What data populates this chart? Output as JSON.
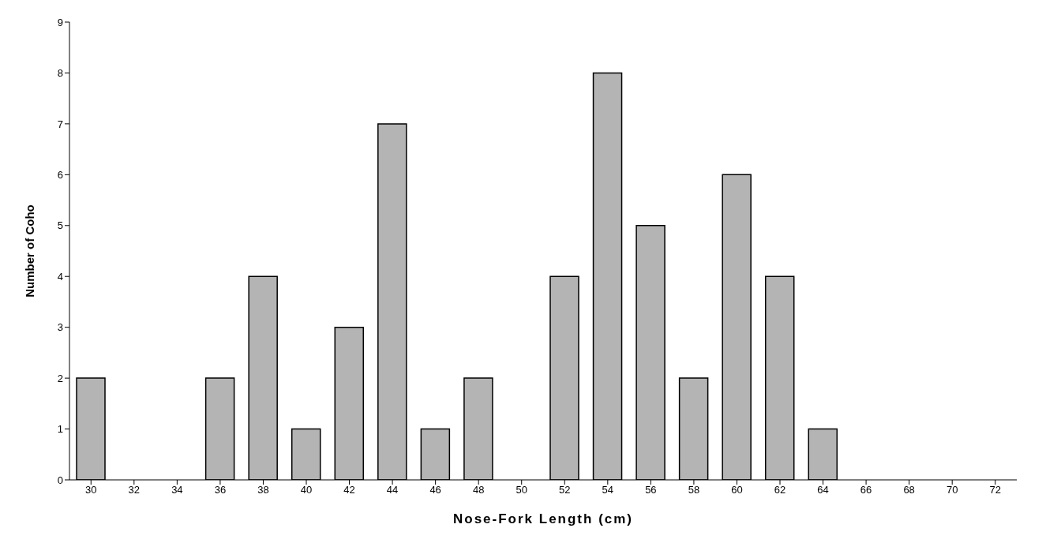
{
  "chart_data": {
    "type": "bar",
    "xlabel": "Nose-Fork Length (cm)",
    "ylabel": "Number of Coho",
    "categories": [
      "30",
      "32",
      "34",
      "36",
      "38",
      "40",
      "42",
      "44",
      "46",
      "48",
      "50",
      "52",
      "54",
      "56",
      "58",
      "60",
      "62",
      "64",
      "66",
      "68",
      "70",
      "72"
    ],
    "values": [
      2,
      0,
      0,
      2,
      4,
      1,
      3,
      7,
      1,
      2,
      0,
      4,
      8,
      5,
      2,
      6,
      4,
      1,
      0,
      0,
      0,
      0
    ],
    "color": "#b4b4b4",
    "ylim": [
      0,
      9
    ],
    "yticks": [
      0,
      1,
      2,
      3,
      4,
      5,
      6,
      7,
      8,
      9
    ],
    "grid": false,
    "legend": false
  }
}
